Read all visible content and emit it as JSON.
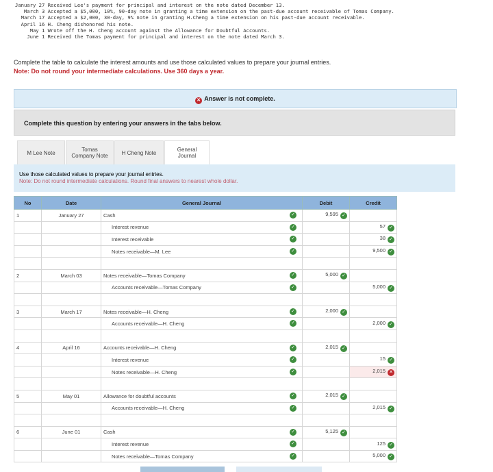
{
  "transactions": [
    "January 27 Received Lee's payment for principal and interest on the note dated December 13.",
    "   March 3 Accepted a $5,000, 10%, 90-day note in granting a time extension on the past-due account receivable of Tomas Company.",
    "  March 17 Accepted a $2,000, 30-day, 9% note in granting H.Cheng a time extension on his past-due account receivable.",
    "  April 16 H. Cheng dishonored his note.",
    "     May 1 Wrote off the H. Cheng account against the Allowance for Doubtful Accounts.",
    "    June 1 Received the Tomas payment for principal and interest on the note dated March 3."
  ],
  "instruction": "Complete the table to calculate the interest amounts and use those calculated values to prepare your journal entries.",
  "note": "Note: Do not round your intermediate calculations. Use 360 days a year.",
  "banner": "Answer is not complete.",
  "prompt": "Complete this question by entering your answers in the tabs below.",
  "tabs": [
    {
      "label": "M Lee Note"
    },
    {
      "label": "Tomas Company Note"
    },
    {
      "label": "H Cheng Note"
    },
    {
      "label": "General Journal",
      "active": true
    }
  ],
  "info": {
    "line1": "Use those calculated values to prepare your journal entries.",
    "line2": "Note: Do not round intermediate calculations. Round final answers to nearest whole dollar."
  },
  "headers": {
    "no": "No",
    "date": "Date",
    "journal": "General Journal",
    "debit": "Debit",
    "credit": "Credit"
  },
  "rows": [
    {
      "no": "1",
      "date": "January 27",
      "account": "Cash",
      "debit": "9,595",
      "credit": ""
    },
    {
      "no": "",
      "date": "",
      "account": "Interest revenue",
      "indent": true,
      "debit": "",
      "credit": "57"
    },
    {
      "no": "",
      "date": "",
      "account": "Interest receivable",
      "indent": true,
      "debit": "",
      "credit": "38"
    },
    {
      "no": "",
      "date": "",
      "account": "Notes receivable—M. Lee",
      "indent": true,
      "debit": "",
      "credit": "9,500"
    },
    {
      "blank": true
    },
    {
      "no": "2",
      "date": "March 03",
      "account": "Notes receivable—Tomas Company",
      "debit": "5,000",
      "credit": ""
    },
    {
      "no": "",
      "date": "",
      "account": "Accounts receivable—Tomas Company",
      "indent": true,
      "debit": "",
      "credit": "5,000"
    },
    {
      "blank": true
    },
    {
      "no": "3",
      "date": "March 17",
      "account": "Notes receivable—H. Cheng",
      "debit": "2,000",
      "credit": ""
    },
    {
      "no": "",
      "date": "",
      "account": "Accounts receivable—H. Cheng",
      "indent": true,
      "debit": "",
      "credit": "2,000"
    },
    {
      "blank": true
    },
    {
      "no": "4",
      "date": "April 16",
      "account": "Accounts receivable—H. Cheng",
      "debit": "2,015",
      "credit": ""
    },
    {
      "no": "",
      "date": "",
      "account": "Interest revenue",
      "indent": true,
      "debit": "",
      "credit": "15"
    },
    {
      "no": "",
      "date": "",
      "account": "Notes receivable—H. Cheng",
      "indent": true,
      "debit": "",
      "credit": "2,015",
      "credit_wrong": true
    },
    {
      "blank": true
    },
    {
      "no": "5",
      "date": "May 01",
      "account": "Allowance for doubtful accounts",
      "debit": "2,015",
      "credit": ""
    },
    {
      "no": "",
      "date": "",
      "account": "Accounts receivable—H. Cheng",
      "indent": true,
      "debit": "",
      "credit": "2,015"
    },
    {
      "blank": true
    },
    {
      "no": "6",
      "date": "June 01",
      "account": "Cash",
      "debit": "5,125",
      "credit": ""
    },
    {
      "no": "",
      "date": "",
      "account": "Interest revenue",
      "indent": true,
      "debit": "",
      "credit": "125"
    },
    {
      "no": "",
      "date": "",
      "account": "Notes receivable—Tomas Company",
      "indent": true,
      "debit": "",
      "credit": "5,000"
    }
  ],
  "colors": {
    "correct": "#3e8e3e",
    "wrong": "#c0282d",
    "header": "#8fb4dc"
  }
}
